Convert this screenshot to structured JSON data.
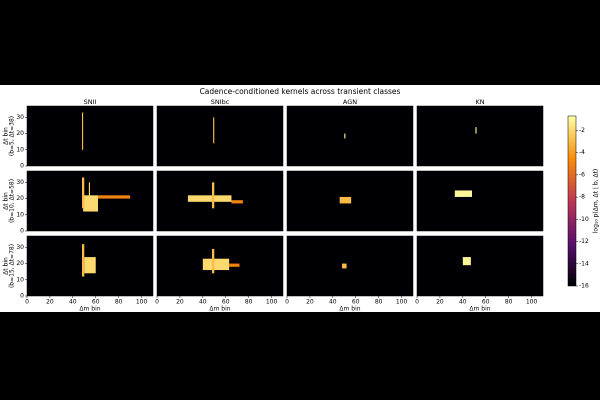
{
  "chart_data": {
    "type": "heatmap",
    "title": "Cadence-conditioned kernels across transient classes",
    "columns": [
      "SNII",
      "SNIbc",
      "AGN",
      "KN"
    ],
    "ylabel": "Δt bin",
    "row_labels": [
      "(b=5, Δt=38)",
      "(b=10, Δt=58)",
      "(b=15, Δt=78)"
    ],
    "xlabel": "Δm bin",
    "xlim": [
      0,
      110
    ],
    "xticks": [
      0,
      20,
      40,
      60,
      80,
      100
    ],
    "ylim": [
      0,
      37
    ],
    "yticks": [
      0,
      10,
      20,
      30
    ],
    "colormap": "inferno",
    "colorbar_label": "log₁₀ p(Δm, Δt | b, Δt)",
    "clim": [
      -16,
      -0.7
    ],
    "cticks": [
      -16,
      -14,
      -12,
      -10,
      -8,
      -6,
      -4,
      -2
    ],
    "panels": [
      {
        "x0": [
          48
        ],
        "x1": [
          49
        ],
        "y0": [
          10
        ],
        "y1": [
          33
        ],
        "values": [
          -3
        ]
      },
      {
        "x0": [
          49
        ],
        "x1": [
          50
        ],
        "y0": [
          14
        ],
        "y1": [
          30
        ],
        "values": [
          -3
        ]
      },
      {
        "x0": [
          50
        ],
        "x1": [
          51
        ],
        "y0": [
          17
        ],
        "y1": [
          20
        ],
        "values": [
          -1
        ]
      },
      {
        "x0": [
          51
        ],
        "x1": [
          52
        ],
        "y0": [
          20
        ],
        "y1": [
          24
        ],
        "values": [
          -1
        ]
      },
      {
        "x0": [
          62,
          49,
          48,
          54
        ],
        "x1": [
          90,
          62,
          50,
          55
        ],
        "y0": [
          20,
          12,
          14,
          18
        ],
        "y1": [
          22,
          22,
          33,
          30
        ],
        "values": [
          -5,
          -2,
          -3,
          -2
        ]
      },
      {
        "x0": [
          65,
          27,
          48
        ],
        "x1": [
          75,
          65,
          50
        ],
        "y0": [
          17,
          18,
          14
        ],
        "y1": [
          19,
          22,
          30
        ],
        "values": [
          -5,
          -2,
          -3
        ]
      },
      {
        "x0": [
          46
        ],
        "x1": [
          56
        ],
        "y0": [
          17
        ],
        "y1": [
          21
        ],
        "values": [
          -3
        ]
      },
      {
        "x0": [
          33
        ],
        "x1": [
          48
        ],
        "y0": [
          21
        ],
        "y1": [
          25
        ],
        "values": [
          -1
        ]
      },
      {
        "x0": [
          50,
          48
        ],
        "x1": [
          60,
          50
        ],
        "y0": [
          14,
          12
        ],
        "y1": [
          24,
          32
        ],
        "values": [
          -2,
          -3
        ]
      },
      {
        "x0": [
          63,
          40,
          48
        ],
        "x1": [
          72,
          63,
          50
        ],
        "y0": [
          18,
          16,
          14
        ],
        "y1": [
          20,
          23,
          29
        ],
        "values": [
          -5,
          -2,
          -3
        ]
      },
      {
        "x0": [
          48
        ],
        "x1": [
          52
        ],
        "y0": [
          17
        ],
        "y1": [
          20
        ],
        "values": [
          -3
        ]
      },
      {
        "x0": [
          40
        ],
        "x1": [
          47
        ],
        "y0": [
          19
        ],
        "y1": [
          24
        ],
        "values": [
          -1
        ]
      }
    ]
  }
}
